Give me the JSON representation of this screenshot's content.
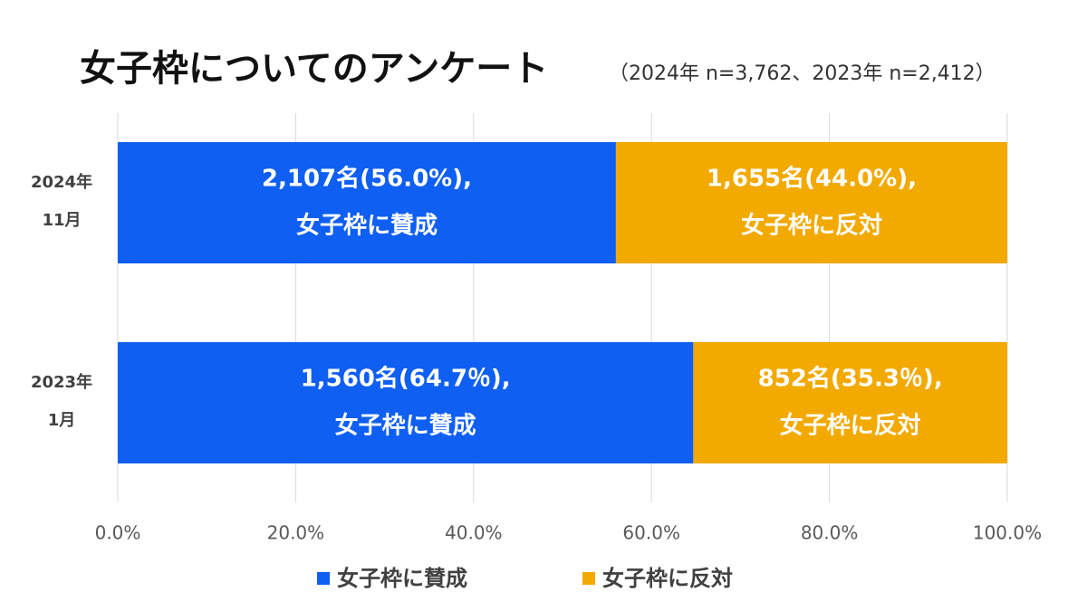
{
  "chart_data": {
    "type": "stacked_bar_horizontal",
    "title": "女子枠についてのアンケート",
    "subtitle": "（2024年 n=3,762、2023年 n=2,412）",
    "categories": [
      [
        "2024年",
        "11月"
      ],
      [
        "2023年",
        "1月"
      ]
    ],
    "series": [
      {
        "name": "女子枠に賛成",
        "color": "#0f5ff2",
        "values": [
          56.0,
          64.7
        ],
        "value_labels": [
          [
            "2,107名(56.0%),",
            "女子枠に賛成"
          ],
          [
            "1,560名(64.7％),",
            "女子枠に賛成"
          ]
        ]
      },
      {
        "name": "女子枠に反対",
        "color": "#f2a900",
        "values": [
          44.0,
          35.3
        ],
        "value_labels": [
          [
            "1,655名(44.0%),",
            "女子枠に反対"
          ],
          [
            "852名(35.3％),",
            "女子枠に反対"
          ]
        ]
      }
    ],
    "xlim": [
      0,
      100
    ],
    "xticks": [
      {
        "value": 0,
        "label": "0.0%"
      },
      {
        "value": 20,
        "label": "20.0%"
      },
      {
        "value": 40,
        "label": "40.0%"
      },
      {
        "value": 60,
        "label": "60.0%"
      },
      {
        "value": 80,
        "label": "80.0%"
      },
      {
        "value": 100,
        "label": "100.0%"
      }
    ],
    "grid": true,
    "legend": "bottom"
  }
}
